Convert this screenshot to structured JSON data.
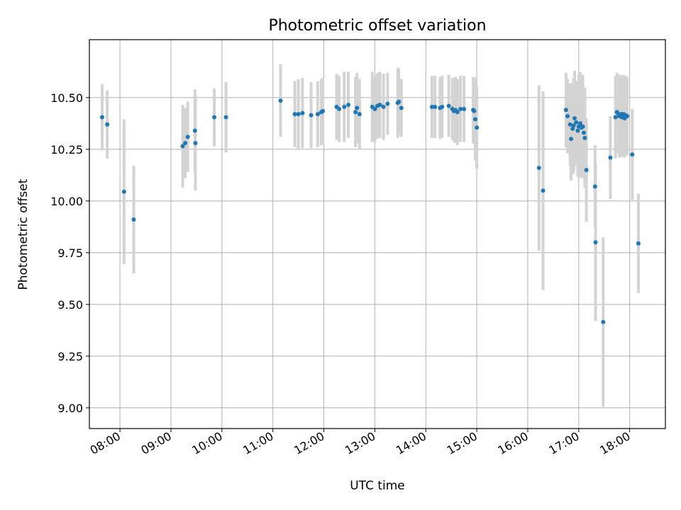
{
  "chart_data": {
    "type": "scatter",
    "title": "Photometric offset variation",
    "xlabel": "UTC time",
    "ylabel": "Photometric offset",
    "x_unit": "hours UTC",
    "xlim": [
      7.4,
      18.7
    ],
    "ylim": [
      8.9,
      10.78
    ],
    "x_tick_values": [
      8,
      9,
      10,
      11,
      12,
      13,
      14,
      15,
      16,
      17,
      18
    ],
    "x_tick_labels": [
      "08:00",
      "09:00",
      "10:00",
      "11:00",
      "12:00",
      "13:00",
      "14:00",
      "15:00",
      "16:00",
      "17:00",
      "18:00"
    ],
    "y_tick_values": [
      9.0,
      9.25,
      9.5,
      9.75,
      10.0,
      10.25,
      10.5
    ],
    "y_tick_labels": [
      "9.00",
      "9.25",
      "9.50",
      "9.75",
      "10.00",
      "10.25",
      "10.50"
    ],
    "grid": true,
    "colors": {
      "points": "#1f77b4",
      "errorbars": "#d3d3d3",
      "grid": "#b0b0b0"
    },
    "series": [
      {
        "points": [
          [
            7.65,
            10.405,
            0.16
          ],
          [
            7.75,
            10.37,
            0.165
          ],
          [
            8.08,
            10.045,
            0.35
          ],
          [
            8.27,
            9.91,
            0.26
          ],
          [
            9.23,
            10.265,
            0.2
          ],
          [
            9.28,
            10.28,
            0.17
          ],
          [
            9.33,
            10.31,
            0.17
          ],
          [
            9.47,
            10.34,
            0.2
          ],
          [
            9.48,
            10.28,
            0.23
          ],
          [
            9.85,
            10.405,
            0.14
          ],
          [
            10.08,
            10.405,
            0.17
          ],
          [
            11.15,
            10.485,
            0.175
          ],
          [
            11.43,
            10.42,
            0.16
          ],
          [
            11.5,
            10.42,
            0.17
          ],
          [
            11.58,
            10.425,
            0.17
          ],
          [
            11.75,
            10.415,
            0.16
          ],
          [
            11.88,
            10.42,
            0.16
          ],
          [
            11.95,
            10.43,
            0.16
          ],
          [
            11.98,
            10.435,
            0.16
          ],
          [
            12.25,
            10.455,
            0.16
          ],
          [
            12.3,
            10.445,
            0.16
          ],
          [
            12.4,
            10.455,
            0.17
          ],
          [
            12.48,
            10.465,
            0.16
          ],
          [
            12.62,
            10.43,
            0.17
          ],
          [
            12.65,
            10.45,
            0.17
          ],
          [
            12.7,
            10.42,
            0.17
          ],
          [
            12.95,
            10.455,
            0.17
          ],
          [
            13.0,
            10.445,
            0.16
          ],
          [
            13.05,
            10.46,
            0.16
          ],
          [
            13.1,
            10.465,
            0.16
          ],
          [
            13.17,
            10.455,
            0.16
          ],
          [
            13.25,
            10.47,
            0.15
          ],
          [
            13.45,
            10.475,
            0.17
          ],
          [
            13.47,
            10.48,
            0.16
          ],
          [
            13.52,
            10.45,
            0.14
          ],
          [
            14.12,
            10.455,
            0.15
          ],
          [
            14.18,
            10.455,
            0.15
          ],
          [
            14.28,
            10.45,
            0.15
          ],
          [
            14.32,
            10.455,
            0.15
          ],
          [
            14.45,
            10.46,
            0.15
          ],
          [
            14.52,
            10.445,
            0.15
          ],
          [
            14.55,
            10.435,
            0.15
          ],
          [
            14.58,
            10.44,
            0.16
          ],
          [
            14.62,
            10.43,
            0.16
          ],
          [
            14.68,
            10.445,
            0.16
          ],
          [
            14.75,
            10.445,
            0.16
          ],
          [
            14.93,
            10.44,
            0.16
          ],
          [
            14.95,
            10.435,
            0.16
          ],
          [
            14.97,
            10.395,
            0.2
          ],
          [
            15.0,
            10.355,
            0.2
          ],
          [
            16.22,
            10.16,
            0.4
          ],
          [
            16.3,
            10.05,
            0.48
          ],
          [
            16.75,
            10.44,
            0.18
          ],
          [
            16.78,
            10.41,
            0.18
          ],
          [
            16.83,
            10.37,
            0.2
          ],
          [
            16.85,
            10.3,
            0.2
          ],
          [
            16.88,
            10.35,
            0.22
          ],
          [
            16.9,
            10.365,
            0.23
          ],
          [
            16.92,
            10.4,
            0.23
          ],
          [
            16.95,
            10.38,
            0.2
          ],
          [
            16.98,
            10.34,
            0.22
          ],
          [
            17.0,
            10.36,
            0.25
          ],
          [
            17.03,
            10.375,
            0.25
          ],
          [
            17.05,
            10.355,
            0.24
          ],
          [
            17.08,
            10.36,
            0.25
          ],
          [
            17.1,
            10.33,
            0.22
          ],
          [
            17.12,
            10.305,
            0.24
          ],
          [
            17.15,
            10.15,
            0.25
          ],
          [
            17.32,
            10.07,
            0.2
          ],
          [
            17.33,
            9.8,
            0.38
          ],
          [
            17.48,
            9.415,
            0.41
          ],
          [
            17.62,
            10.21,
            0.2
          ],
          [
            17.72,
            10.405,
            0.2
          ],
          [
            17.75,
            10.43,
            0.19
          ],
          [
            17.78,
            10.42,
            0.19
          ],
          [
            17.8,
            10.41,
            0.2
          ],
          [
            17.83,
            10.42,
            0.19
          ],
          [
            17.85,
            10.405,
            0.19
          ],
          [
            17.88,
            10.42,
            0.19
          ],
          [
            17.9,
            10.4,
            0.19
          ],
          [
            17.92,
            10.415,
            0.19
          ],
          [
            17.95,
            10.41,
            0.19
          ],
          [
            18.05,
            10.225,
            0.22
          ],
          [
            18.17,
            9.795,
            0.24
          ]
        ]
      }
    ]
  }
}
